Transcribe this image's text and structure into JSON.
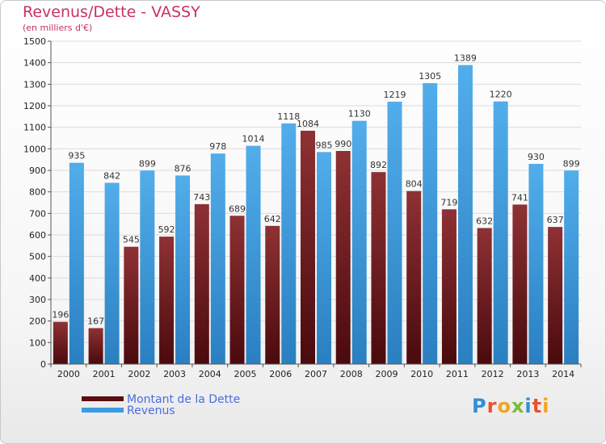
{
  "header": {
    "title": "Revenus/Dette - VASSY",
    "subtitle": "(en milliers d'€)"
  },
  "legend": {
    "dette_label": "Montant de la Dette",
    "revenus_label": "Revenus"
  },
  "logo": {
    "text": "Proxiti",
    "letters": [
      "P",
      "r",
      "o",
      "x",
      "i",
      "t",
      "i"
    ],
    "colors": [
      "#2f8fd6",
      "#e8522e",
      "#f2a421",
      "#7cba3c",
      "#2f8fd6",
      "#e8522e",
      "#f2a421"
    ]
  },
  "chart_data": {
    "type": "bar",
    "categories": [
      "2000",
      "2001",
      "2002",
      "2003",
      "2004",
      "2005",
      "2006",
      "2007",
      "2008",
      "2009",
      "2010",
      "2011",
      "2012",
      "2013",
      "2014"
    ],
    "series": [
      {
        "name": "Montant de la Dette",
        "color": "#7b1f22",
        "values": [
          196,
          167,
          545,
          592,
          743,
          689,
          642,
          1084,
          990,
          892,
          804,
          719,
          632,
          741,
          637
        ]
      },
      {
        "name": "Revenus",
        "color": "#3a9ce2",
        "values": [
          935,
          842,
          899,
          876,
          978,
          1014,
          1118,
          985,
          1130,
          1219,
          1305,
          1389,
          1220,
          930,
          899
        ]
      }
    ],
    "y_ticks": [
      "0",
      "100",
      "200",
      "300",
      "400",
      "500",
      "600",
      "700",
      "800",
      "900",
      "1000",
      "1100",
      "1200",
      "1300",
      "1400",
      "1500"
    ],
    "ylim": [
      0,
      1500
    ],
    "grid": true,
    "legend_position": "bottom-left"
  }
}
